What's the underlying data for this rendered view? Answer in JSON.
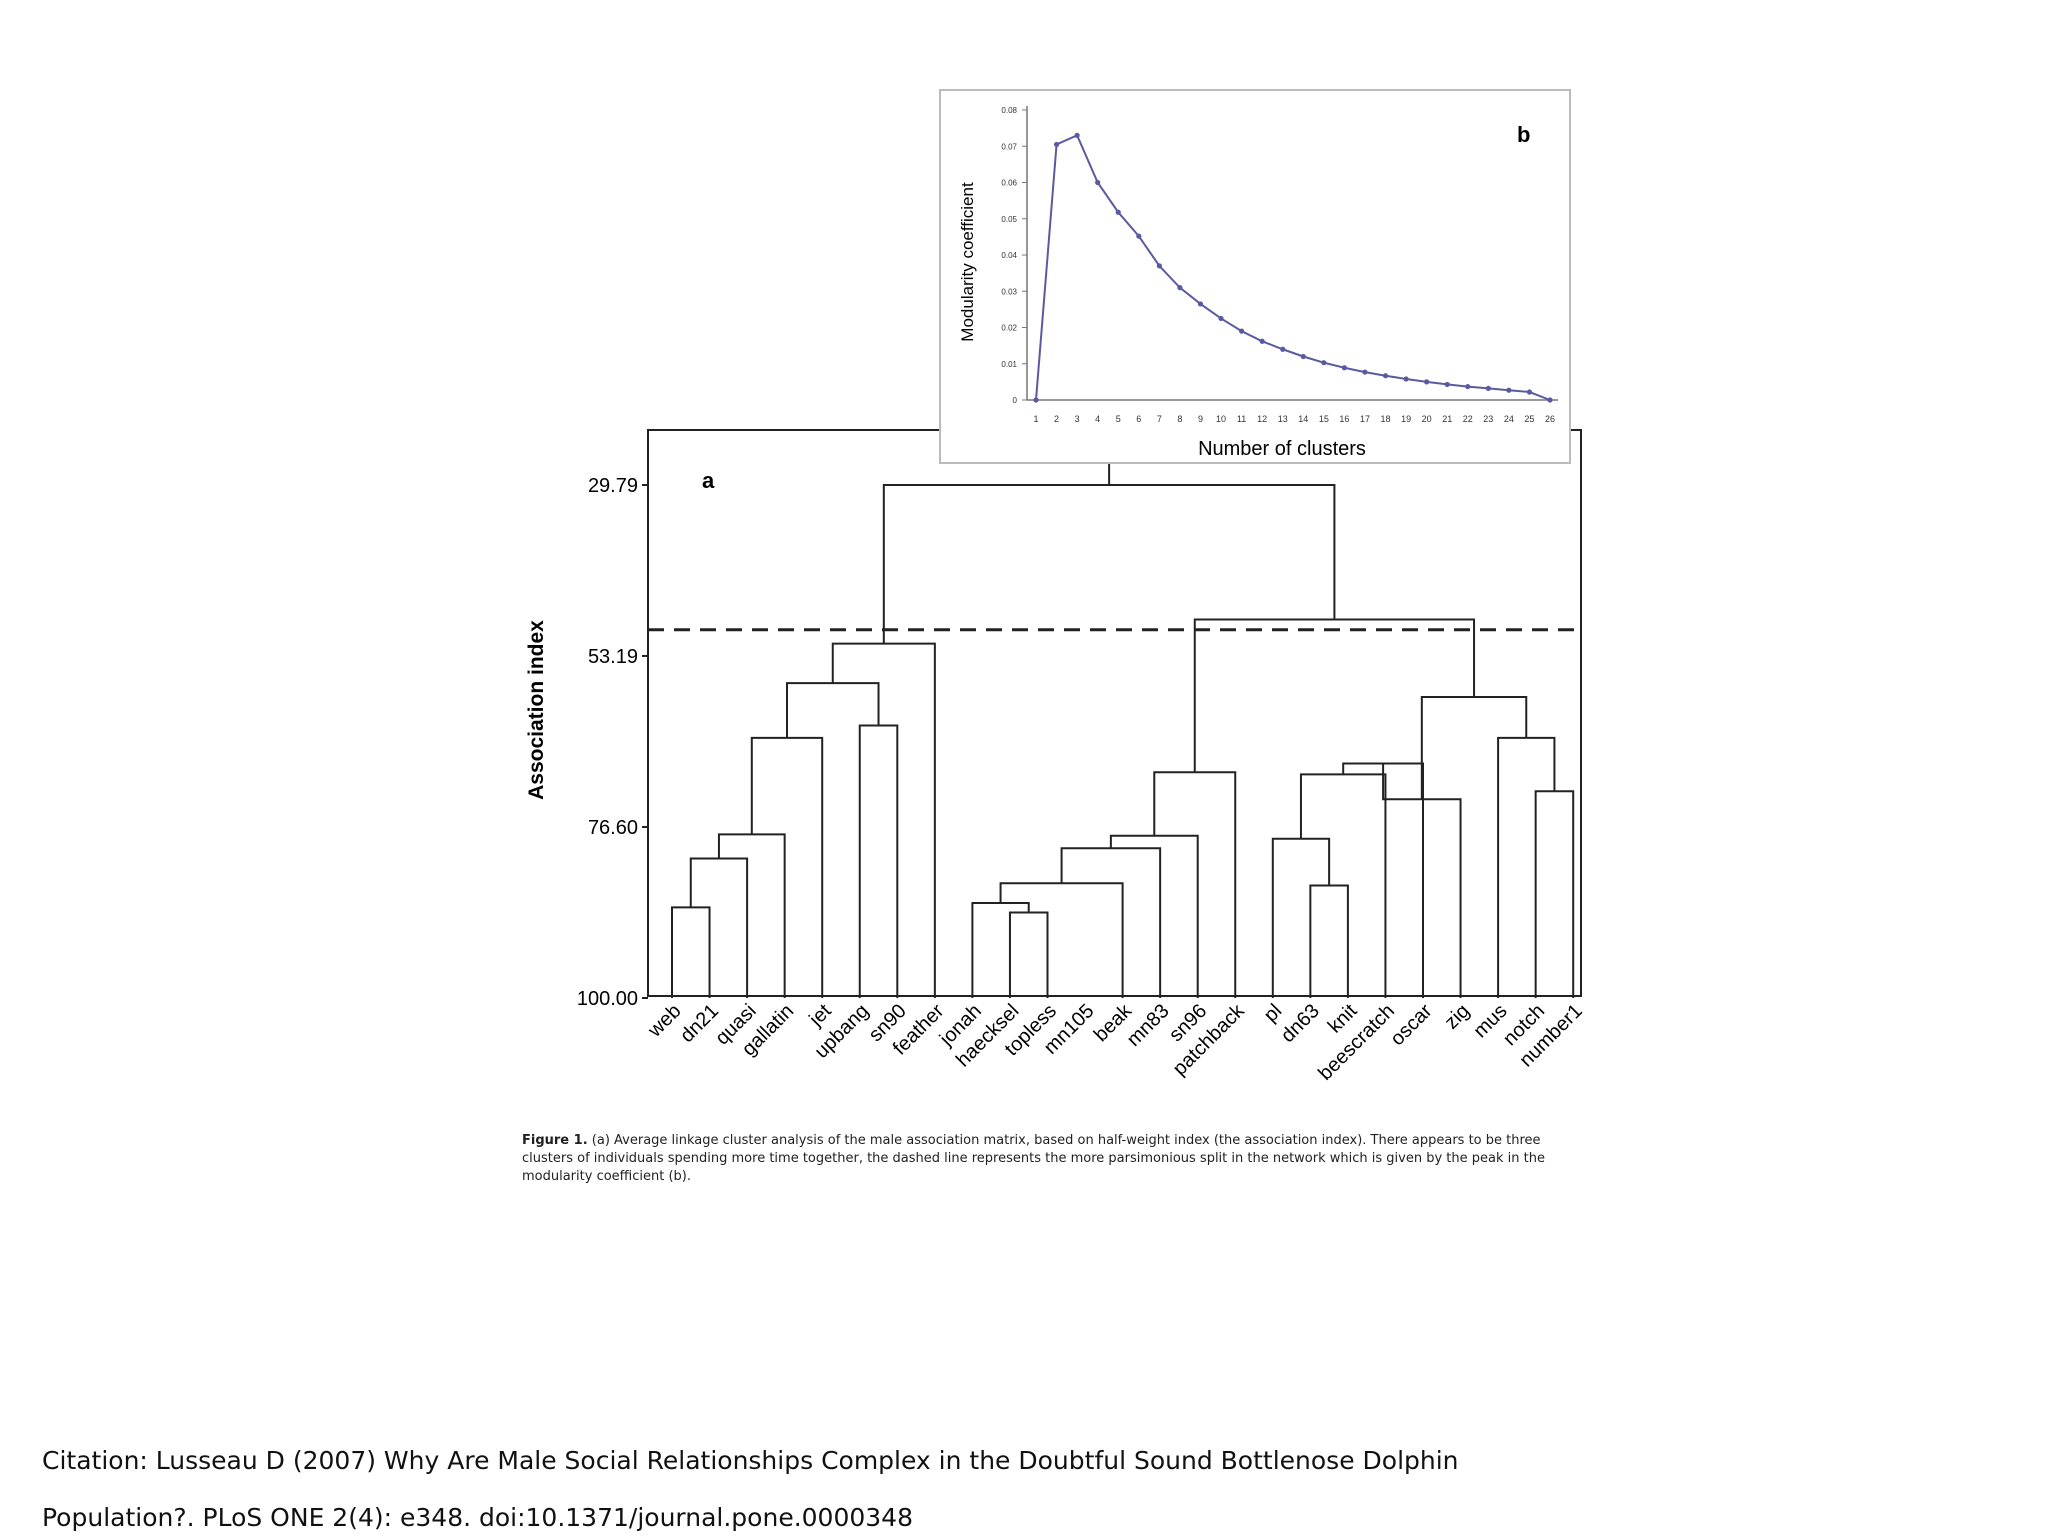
{
  "panel_a": {
    "label": "a",
    "ylabel": "Association index",
    "yticks": [
      "29.79",
      "53.19",
      "76.60",
      "100.00"
    ],
    "ytick_values": [
      29.79,
      53.19,
      76.6,
      100.0
    ],
    "leaves": [
      "web",
      "dn21",
      "quasi",
      "gallatin",
      "jet",
      "upbang",
      "sn90",
      "feather",
      "jonah",
      "haecksel",
      "topless",
      "mn105",
      "beak",
      "mn83",
      "sn96",
      "patchback",
      "pl",
      "dn63",
      "knit",
      "beescratch",
      "oscar",
      "zig",
      "mus",
      "notch",
      "number1"
    ],
    "cut_level": 49.6,
    "merges": [
      {
        "a": "web",
        "b": "dn21",
        "h": 87.6
      },
      {
        "a": "0",
        "b": "quasi",
        "h": 80.9
      },
      {
        "a": "1",
        "b": "gallatin",
        "h": 77.6
      },
      {
        "a": "2",
        "b": "jet",
        "h": 64.4
      },
      {
        "a": "upbang",
        "b": "sn90",
        "h": 62.7
      },
      {
        "a": "3",
        "b": "4",
        "h": 56.9
      },
      {
        "a": "5",
        "b": "feather",
        "h": 51.5
      },
      {
        "a": "haecksel",
        "b": "topless",
        "h": 88.3
      },
      {
        "a": "jonah",
        "b": "7",
        "h": 87.0
      },
      {
        "a": "8",
        "b": "beak",
        "h": 84.3
      },
      {
        "a": "9",
        "b": "mn83",
        "h": 79.5
      },
      {
        "a": "10",
        "b": "sn96",
        "h": 77.8
      },
      {
        "a": "11",
        "b": "patchback",
        "h": 69.1
      },
      {
        "a": "dn63",
        "b": "knit",
        "h": 84.6
      },
      {
        "a": "pl",
        "b": "13",
        "h": 78.2
      },
      {
        "a": "14",
        "b": "beescratch",
        "h": 69.4
      },
      {
        "a": "15",
        "b": "oscar",
        "h": 67.9
      },
      {
        "a": "16",
        "b": "zig",
        "h": 72.8
      },
      {
        "a": "notch",
        "b": "number1",
        "h": 71.7
      },
      {
        "a": "mus",
        "b": "18",
        "h": 64.4
      },
      {
        "a": "17",
        "b": "19",
        "h": 58.8
      },
      {
        "a": "12",
        "b": "20",
        "h": 48.2
      },
      {
        "a": "6",
        "b": "21",
        "h": 29.79
      }
    ]
  },
  "chart_data": {
    "type": "line",
    "title": "",
    "panel_label": "b",
    "xlabel": "Number of clusters",
    "ylabel": "Modularity coefficient",
    "x": [
      1,
      2,
      3,
      4,
      5,
      6,
      7,
      8,
      9,
      10,
      11,
      12,
      13,
      14,
      15,
      16,
      17,
      18,
      19,
      20,
      21,
      22,
      23,
      24,
      25,
      26
    ],
    "y": [
      0.0,
      0.0705,
      0.073,
      0.06,
      0.0518,
      0.0452,
      0.037,
      0.031,
      0.0265,
      0.0225,
      0.019,
      0.0162,
      0.014,
      0.012,
      0.0103,
      0.0089,
      0.0077,
      0.0067,
      0.0058,
      0.005,
      0.0043,
      0.0037,
      0.0032,
      0.0027,
      0.0022,
      0.0
    ],
    "xlim": [
      1,
      26
    ],
    "ylim": [
      0,
      0.08
    ],
    "yticks": [
      "0",
      "0.01",
      "0.02",
      "0.03",
      "0.04",
      "0.05",
      "0.06",
      "0.07",
      "0.08"
    ],
    "ytick_values": [
      0,
      0.01,
      0.02,
      0.03,
      0.04,
      0.05,
      0.06,
      0.07,
      0.08
    ],
    "xticks": [
      "1",
      "2",
      "3",
      "4",
      "5",
      "6",
      "7",
      "8",
      "9",
      "10",
      "11",
      "12",
      "13",
      "14",
      "15",
      "16",
      "17",
      "18",
      "19",
      "20",
      "21",
      "22",
      "23",
      "24",
      "25",
      "26"
    ],
    "line_color": "#5a5aa0",
    "grid": false
  },
  "caption": {
    "prefix": "Figure 1.",
    "text": "(a) Average linkage cluster analysis of the male association matrix, based on half-weight index (the association index). There appears to be three clusters of individuals spending more time together, the dashed line represents the more parsimonious split in the network which is given by the peak in the modularity coefficient (b)."
  },
  "citation": {
    "line1": "Citation: Lusseau D (2007) Why Are Male Social Relationships Complex in the Doubtful Sound Bottlenose Dolphin",
    "line2": "Population?. PLoS ONE 2(4): e348. doi:10.1371/journal.pone.0000348"
  }
}
